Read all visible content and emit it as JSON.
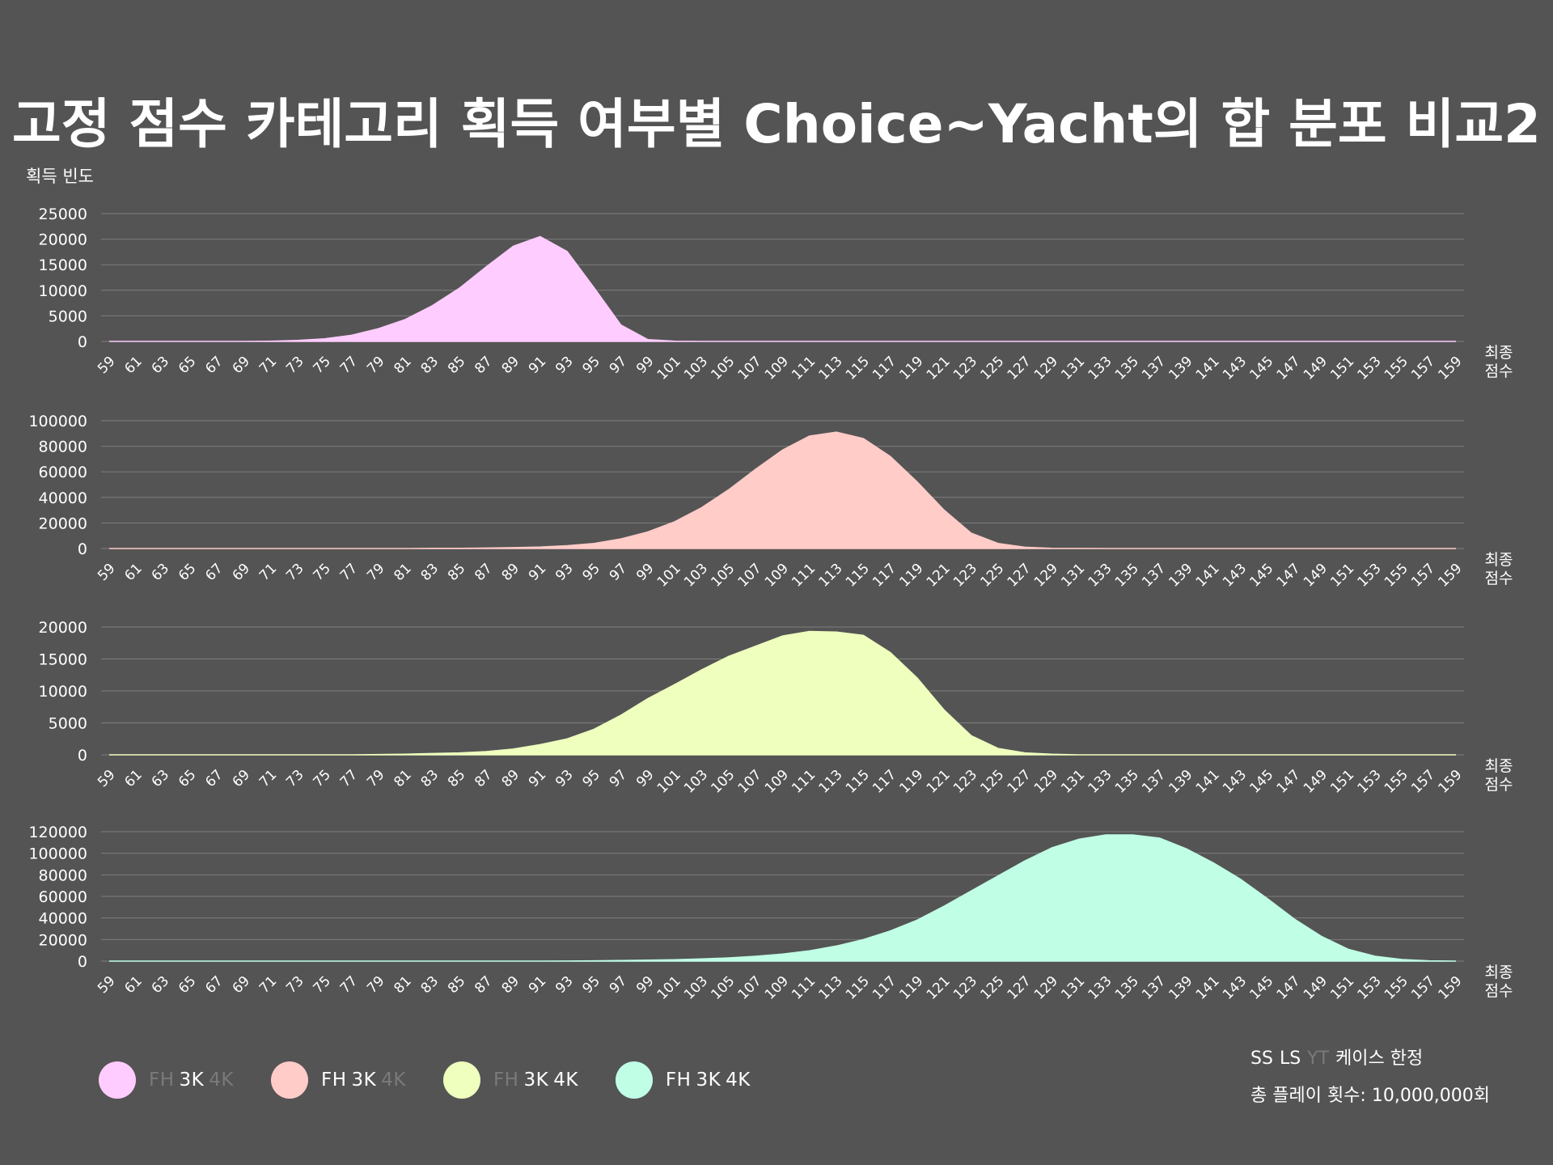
{
  "title": "고정 점수 카테고리 획득 여부별 Choice~Yacht의 합 분포 비교2",
  "y_axis_label": "획득 빈도",
  "x_axis_label_line1": "최종",
  "x_axis_label_line2": "점수",
  "colors": {
    "background": "#545454",
    "active_text": "#ffffff",
    "inactive_text": "#7a7a7a",
    "grid": "#7e7e7e"
  },
  "legend": [
    {
      "color": "#ffccff",
      "parts": [
        {
          "text": "FH",
          "active": false
        },
        {
          "text": "3K",
          "active": true
        },
        {
          "text": "4K",
          "active": false
        }
      ]
    },
    {
      "color": "#ffccc8",
      "parts": [
        {
          "text": "FH",
          "active": true
        },
        {
          "text": "3K",
          "active": true
        },
        {
          "text": "4K",
          "active": false
        }
      ]
    },
    {
      "color": "#eeffbe",
      "parts": [
        {
          "text": "FH",
          "active": false
        },
        {
          "text": "3K",
          "active": true
        },
        {
          "text": "4K",
          "active": true
        }
      ]
    },
    {
      "color": "#c0ffe6",
      "parts": [
        {
          "text": "FH",
          "active": true
        },
        {
          "text": "3K",
          "active": true
        },
        {
          "text": "4K",
          "active": true
        }
      ]
    }
  ],
  "note": {
    "line1": [
      {
        "text": "SS",
        "active": true
      },
      {
        "text": "LS",
        "active": true
      },
      {
        "text": "YT",
        "active": false
      },
      {
        "text": "케이스 한정",
        "active": true
      }
    ],
    "line2": "총 플레이 횟수: 10,000,000회"
  },
  "chart_data": [
    {
      "type": "area",
      "color": "#ffccff",
      "x": [
        59,
        61,
        63,
        65,
        67,
        69,
        71,
        73,
        75,
        77,
        79,
        81,
        83,
        85,
        87,
        89,
        91,
        93,
        95,
        97,
        99,
        101,
        103,
        105,
        107,
        109,
        111,
        113,
        115,
        117,
        119,
        121,
        123,
        125,
        127,
        129,
        131,
        133,
        135,
        137,
        139,
        141,
        143,
        145,
        147,
        149,
        151,
        153,
        155,
        157,
        159
      ],
      "values": [
        0,
        0,
        0,
        0,
        0,
        0,
        50,
        200,
        500,
        1200,
        2500,
        4300,
        7000,
        10400,
        14600,
        18600,
        20500,
        17600,
        10500,
        3200,
        350,
        50,
        0,
        0,
        0,
        0,
        0,
        0,
        0,
        0,
        0,
        0,
        0,
        0,
        0,
        0,
        0,
        0,
        0,
        0,
        0,
        0,
        0,
        0,
        0,
        0,
        0,
        0,
        0,
        0,
        0
      ],
      "y_ticks": [
        0,
        5000,
        10000,
        15000,
        20000,
        25000
      ],
      "ylim": [
        0,
        25000
      ]
    },
    {
      "type": "area",
      "color": "#ffccc8",
      "x": [
        59,
        61,
        63,
        65,
        67,
        69,
        71,
        73,
        75,
        77,
        79,
        81,
        83,
        85,
        87,
        89,
        91,
        93,
        95,
        97,
        99,
        101,
        103,
        105,
        107,
        109,
        111,
        113,
        115,
        117,
        119,
        121,
        123,
        125,
        127,
        129,
        131,
        133,
        135,
        137,
        139,
        141,
        143,
        145,
        147,
        149,
        151,
        153,
        155,
        157,
        159
      ],
      "values": [
        0,
        0,
        0,
        0,
        0,
        0,
        0,
        0,
        0,
        0,
        0,
        0,
        100,
        200,
        400,
        700,
        1200,
        2200,
        4000,
        7500,
        13000,
        21000,
        32000,
        46000,
        62000,
        77000,
        88000,
        91000,
        86000,
        72000,
        52000,
        30000,
        12000,
        4000,
        1000,
        200,
        50,
        0,
        0,
        0,
        0,
        0,
        0,
        0,
        0,
        0,
        0,
        0,
        0,
        0,
        0
      ],
      "y_ticks": [
        0,
        20000,
        40000,
        60000,
        80000,
        100000
      ],
      "ylim": [
        0,
        100000
      ]
    },
    {
      "type": "area",
      "color": "#eeffbe",
      "x": [
        59,
        61,
        63,
        65,
        67,
        69,
        71,
        73,
        75,
        77,
        79,
        81,
        83,
        85,
        87,
        89,
        91,
        93,
        95,
        97,
        99,
        101,
        103,
        105,
        107,
        109,
        111,
        113,
        115,
        117,
        119,
        121,
        123,
        125,
        127,
        129,
        131,
        133,
        135,
        137,
        139,
        141,
        143,
        145,
        147,
        149,
        151,
        153,
        155,
        157,
        159
      ],
      "values": [
        0,
        0,
        0,
        0,
        0,
        0,
        0,
        0,
        0,
        0,
        50,
        100,
        200,
        300,
        500,
        900,
        1600,
        2500,
        4000,
        6200,
        8800,
        11000,
        13300,
        15400,
        17000,
        18600,
        19300,
        19200,
        18700,
        16000,
        12000,
        7000,
        3000,
        1000,
        300,
        100,
        0,
        0,
        0,
        0,
        0,
        0,
        0,
        0,
        0,
        0,
        0,
        0,
        0,
        0,
        0
      ],
      "y_ticks": [
        0,
        5000,
        10000,
        15000,
        20000
      ],
      "ylim": [
        0,
        20000
      ]
    },
    {
      "type": "area",
      "color": "#c0ffe6",
      "x": [
        59,
        61,
        63,
        65,
        67,
        69,
        71,
        73,
        75,
        77,
        79,
        81,
        83,
        85,
        87,
        89,
        91,
        93,
        95,
        97,
        99,
        101,
        103,
        105,
        107,
        109,
        111,
        113,
        115,
        117,
        119,
        121,
        123,
        125,
        127,
        129,
        131,
        133,
        135,
        137,
        139,
        141,
        143,
        145,
        147,
        149,
        151,
        153,
        155,
        157,
        159
      ],
      "values": [
        0,
        0,
        0,
        0,
        0,
        0,
        0,
        0,
        0,
        0,
        0,
        0,
        0,
        0,
        0,
        0,
        0,
        100,
        300,
        600,
        900,
        1300,
        2000,
        3000,
        4500,
        6500,
        9500,
        14000,
        20000,
        28000,
        38000,
        51000,
        65000,
        79000,
        93000,
        105000,
        113000,
        117000,
        117000,
        114000,
        104000,
        91000,
        76000,
        58000,
        39000,
        23000,
        11000,
        4500,
        1500,
        300,
        0
      ],
      "y_ticks": [
        0,
        20000,
        40000,
        60000,
        80000,
        100000,
        120000
      ],
      "ylim": [
        0,
        120000
      ]
    }
  ]
}
